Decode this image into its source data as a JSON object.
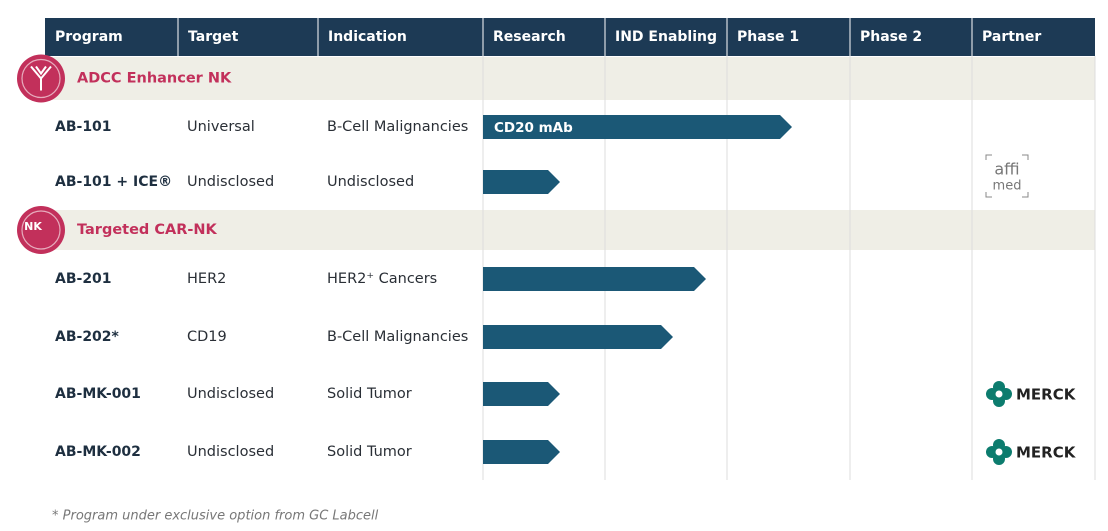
{
  "header": [
    "Program",
    "Target",
    "Indication",
    "Research",
    "IND Enabling",
    "Phase 1",
    "Phase 2",
    "Partner"
  ],
  "groups": [
    {
      "title": "ADCC Enhancer NK",
      "rows": [
        {
          "program": "AB-101",
          "target": "Universal",
          "indication": "B-Cell Malignancies",
          "bar_label": "CD20 mAb"
        },
        {
          "program": "AB-101 + ICE®",
          "target": "Undisclosed",
          "indication": "Undisclosed",
          "partner": [
            "affi",
            "med"
          ]
        }
      ]
    },
    {
      "title": "Targeted CAR-NK",
      "badge": "NK",
      "rows": [
        {
          "program": "AB-201",
          "target": "HER2",
          "indication": "HER2⁺ Cancers"
        },
        {
          "program": "AB-202*",
          "target": "CD19",
          "indication": "B-Cell Malignancies"
        },
        {
          "program": "AB-MK-001",
          "target": "Undisclosed",
          "indication": "Solid Tumor",
          "partner": [
            "MERCK"
          ]
        },
        {
          "program": "AB-MK-002",
          "target": "Undisclosed",
          "indication": "Solid Tumor",
          "partner": [
            "MERCK"
          ]
        }
      ]
    }
  ],
  "footnote": "* Program under exclusive option from GC Labcell"
}
